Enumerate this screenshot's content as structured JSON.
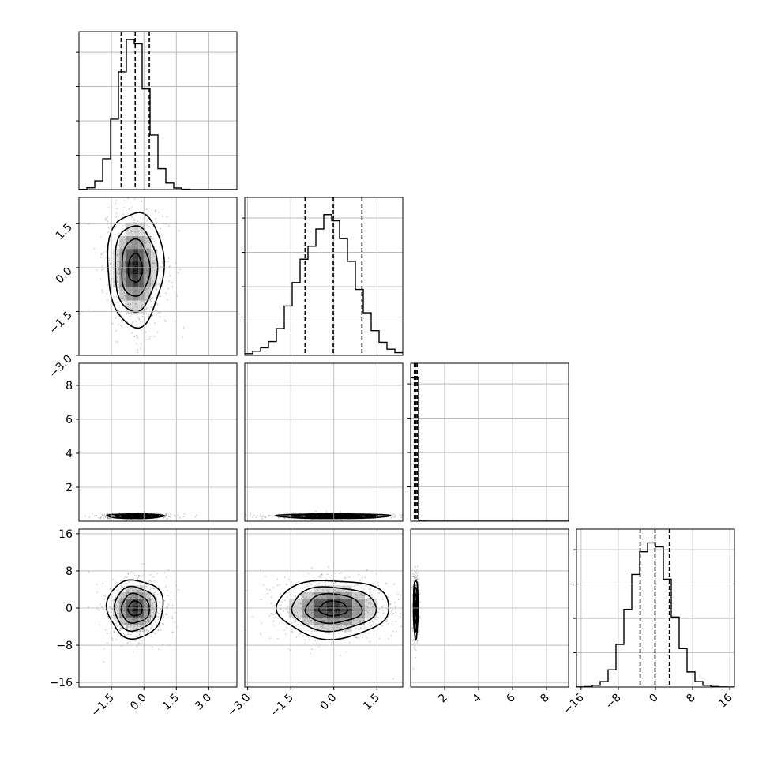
{
  "chart_data": {
    "type": "corner",
    "variables": 4,
    "quantiles": [
      0.16,
      0.5,
      0.84
    ],
    "grid": true,
    "diagonal": [
      {
        "var": 0,
        "xlim": [
          -3.0,
          4.3
        ],
        "bin_edges": [
          -3.0,
          -2.635,
          -2.27,
          -1.905,
          -1.54,
          -1.175,
          -0.81,
          -0.445,
          -0.08,
          0.285,
          0.65,
          1.015,
          1.38,
          1.745,
          2.11,
          2.475,
          2.84,
          3.205,
          3.57,
          3.935,
          4.3
        ],
        "counts": [
          3,
          25,
          120,
          430,
          980,
          1640,
          2090,
          2030,
          1400,
          760,
          290,
          90,
          22,
          5,
          1,
          0,
          0,
          0,
          0,
          0
        ],
        "quantile_values": [
          -1.05,
          -0.4,
          0.25
        ],
        "ylim": [
          0,
          2200
        ]
      },
      {
        "var": 1,
        "xlim": [
          -3.1,
          2.4
        ],
        "bin_edges": [
          -3.1,
          -2.825,
          -2.55,
          -2.275,
          -2.0,
          -1.725,
          -1.45,
          -1.175,
          -0.9,
          -0.625,
          -0.35,
          -0.075,
          0.2,
          0.475,
          0.75,
          1.025,
          1.3,
          1.575,
          1.85,
          2.125,
          2.4
        ],
        "counts": [
          25,
          60,
          110,
          200,
          390,
          720,
          1060,
          1400,
          1590,
          1840,
          2050,
          1960,
          1700,
          1370,
          960,
          620,
          360,
          190,
          90,
          40
        ],
        "quantile_values": [
          -1.0,
          -0.02,
          0.98
        ],
        "ylim": [
          0,
          2300
        ]
      },
      {
        "var": 2,
        "xlim": [
          0.0,
          9.3
        ],
        "bin_edges": [
          0.0,
          0.465,
          0.93,
          1.395,
          1.86,
          2.325,
          2.79,
          3.255,
          3.72,
          4.185,
          4.65,
          5.115,
          5.58,
          6.045,
          6.51,
          6.975,
          7.44,
          7.905,
          8.37,
          8.835,
          9.3
        ],
        "counts": [
          9990,
          8,
          1,
          0,
          0,
          0,
          0,
          0,
          0,
          0,
          0,
          0,
          0,
          0,
          0,
          0,
          1,
          0,
          0,
          0
        ],
        "quantile_values": [
          0.22,
          0.3,
          0.38
        ],
        "ylim": [
          0,
          11000
        ]
      },
      {
        "var": 3,
        "xlim": [
          -17.0,
          17.0
        ],
        "bin_edges": [
          -17.0,
          -15.3,
          -13.6,
          -11.9,
          -10.2,
          -8.5,
          -6.8,
          -5.1,
          -3.4,
          -1.7,
          0.0,
          1.7,
          3.4,
          5.1,
          6.8,
          8.5,
          10.2,
          11.9,
          13.6,
          15.3,
          17.0
        ],
        "counts": [
          2,
          6,
          25,
          80,
          250,
          620,
          1130,
          1640,
          1970,
          2100,
          2040,
          1570,
          1020,
          560,
          220,
          80,
          25,
          8,
          2,
          0
        ],
        "quantile_values": [
          -3.3,
          -0.1,
          3.0
        ],
        "ylim": [
          0,
          2300
        ]
      }
    ],
    "pairs": [
      {
        "row": 1,
        "col": 0,
        "x_var": 0,
        "y_var": 1,
        "xlim": [
          -3.0,
          4.3
        ],
        "ylim": [
          -3.0,
          2.4
        ],
        "center": [
          -0.4,
          -0.02
        ],
        "spread": [
          0.65,
          0.98
        ]
      },
      {
        "row": 2,
        "col": 0,
        "x_var": 0,
        "y_var": 2,
        "xlim": [
          -3.0,
          4.3
        ],
        "ylim": [
          0.0,
          9.3
        ],
        "center": [
          -0.4,
          0.3
        ],
        "spread": [
          0.65,
          0.07
        ]
      },
      {
        "row": 2,
        "col": 1,
        "x_var": 1,
        "y_var": 2,
        "xlim": [
          -3.1,
          2.4
        ],
        "ylim": [
          0.0,
          9.3
        ],
        "center": [
          -0.02,
          0.3
        ],
        "spread": [
          0.98,
          0.07
        ]
      },
      {
        "row": 3,
        "col": 0,
        "x_var": 0,
        "y_var": 3,
        "xlim": [
          -3.0,
          4.3
        ],
        "ylim": [
          -17.0,
          17.0
        ],
        "center": [
          -0.4,
          -0.1
        ],
        "spread": [
          0.65,
          3.15
        ]
      },
      {
        "row": 3,
        "col": 1,
        "x_var": 1,
        "y_var": 3,
        "xlim": [
          -3.1,
          2.4
        ],
        "ylim": [
          -17.0,
          17.0
        ],
        "center": [
          -0.02,
          -0.1
        ],
        "spread": [
          0.98,
          3.15
        ]
      },
      {
        "row": 3,
        "col": 2,
        "x_var": 2,
        "y_var": 3,
        "xlim": [
          0.0,
          9.3
        ],
        "ylim": [
          -17.0,
          17.0
        ],
        "center": [
          0.3,
          -0.1
        ],
        "spread": [
          0.07,
          3.15
        ]
      }
    ],
    "contour_levels_sigma": [
      0.5,
      1.0,
      1.5,
      2.0
    ],
    "axis_ticks": {
      "var0": [
        {
          "v": -1.5,
          "label": "−1.5"
        },
        {
          "v": 0.0,
          "label": "0.0"
        },
        {
          "v": 1.5,
          "label": "1.5"
        },
        {
          "v": 3.0,
          "label": "3.0"
        }
      ],
      "var1": [
        {
          "v": -3.0,
          "label": "−3.0"
        },
        {
          "v": -1.5,
          "label": "−1.5"
        },
        {
          "v": 0.0,
          "label": "0.0"
        },
        {
          "v": 1.5,
          "label": "1.5"
        }
      ],
      "var2": [
        {
          "v": 2,
          "label": "2"
        },
        {
          "v": 4,
          "label": "4"
        },
        {
          "v": 6,
          "label": "6"
        },
        {
          "v": 8,
          "label": "8"
        }
      ],
      "var3": [
        {
          "v": -16,
          "label": "−16"
        },
        {
          "v": -8,
          "label": "−8"
        },
        {
          "v": 0,
          "label": "0"
        },
        {
          "v": 8,
          "label": "8"
        },
        {
          "v": 16,
          "label": "16"
        }
      ]
    },
    "colors": {
      "line": "#000000",
      "grid": "#b0b0b0",
      "samples": "#6e6e6e"
    }
  }
}
